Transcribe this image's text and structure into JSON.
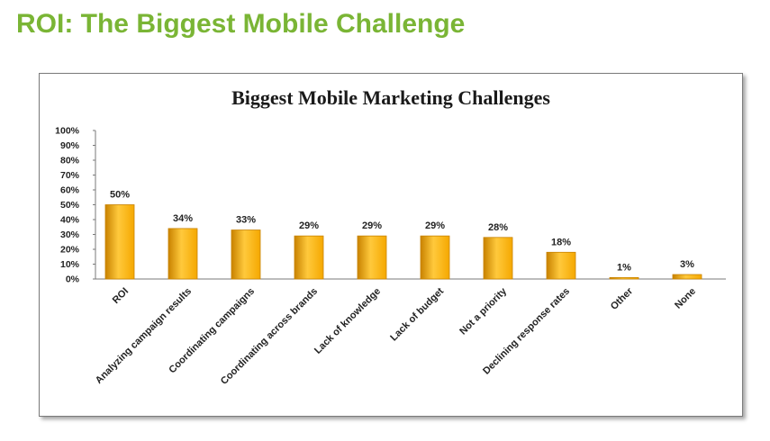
{
  "page": {
    "title": "ROI: The Biggest Mobile Challenge"
  },
  "colors": {
    "title_green": "#7ab535",
    "bar_fill": "#f5a800",
    "bar_highlight": "#ffc93c",
    "bar_shade": "#c88200"
  },
  "chart_data": {
    "type": "bar",
    "title": "Biggest Mobile Marketing Challenges",
    "xlabel": "",
    "ylabel": "",
    "ylim": [
      0,
      100
    ],
    "yticks": [
      "0%",
      "10%",
      "20%",
      "30%",
      "40%",
      "50%",
      "60%",
      "70%",
      "80%",
      "90%",
      "100%"
    ],
    "categories": [
      "ROI",
      "Analyzing campaign results",
      "Coordinating campaigns",
      "Coordinating across brands",
      "Lack of knowledge",
      "Lack of budget",
      "Not a priority",
      "Declining response rates",
      "Other",
      "None"
    ],
    "values": [
      50,
      34,
      33,
      29,
      29,
      29,
      28,
      18,
      1,
      3
    ],
    "value_labels": [
      "50%",
      "34%",
      "33%",
      "29%",
      "29%",
      "29%",
      "28%",
      "18%",
      "1%",
      "3%"
    ],
    "grid": false,
    "legend": "none"
  }
}
